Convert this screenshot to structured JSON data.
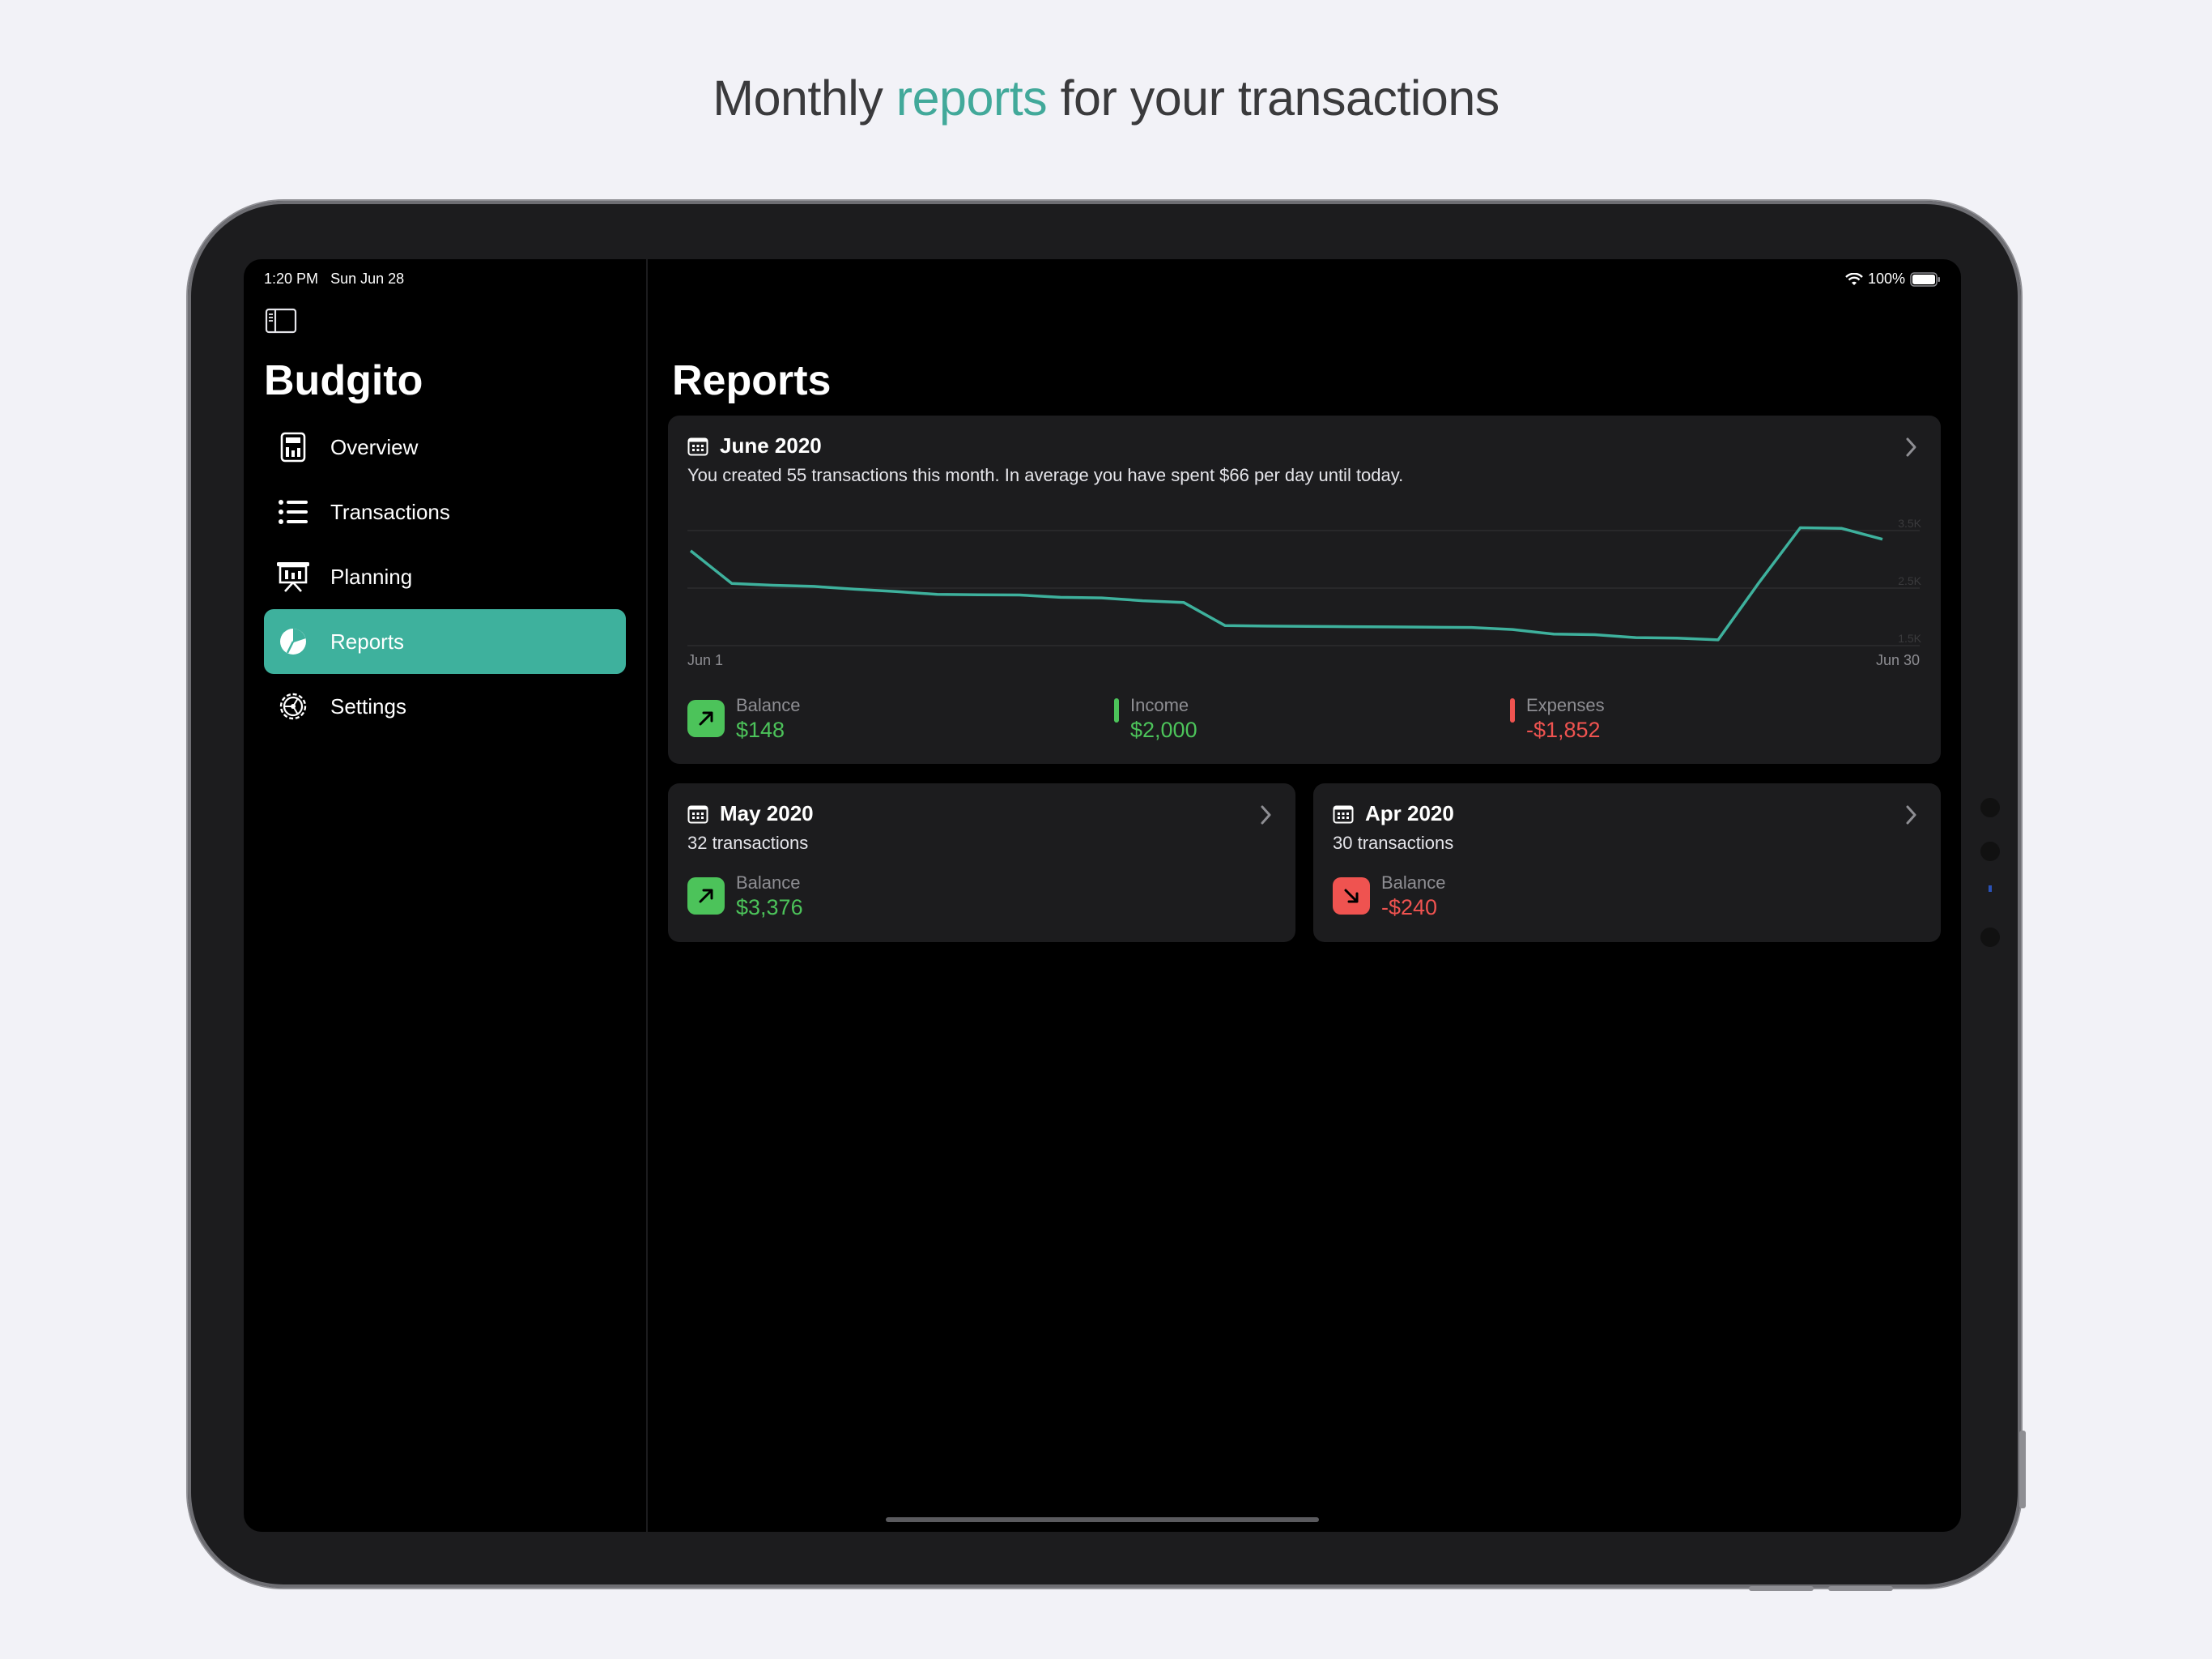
{
  "headline": {
    "before": "Monthly ",
    "accent": "reports",
    "after": " for your transactions"
  },
  "status_bar": {
    "time": "1:20 PM",
    "date": "Sun Jun 28",
    "battery": "100%"
  },
  "app_title": "Budgito",
  "sidebar": {
    "items": [
      {
        "label": "Overview",
        "icon": "overview-icon",
        "active": false
      },
      {
        "label": "Transactions",
        "icon": "list-icon",
        "active": false
      },
      {
        "label": "Planning",
        "icon": "presentation-icon",
        "active": false
      },
      {
        "label": "Reports",
        "icon": "pie-chart-icon",
        "active": true
      },
      {
        "label": "Settings",
        "icon": "gear-icon",
        "active": false
      }
    ]
  },
  "page_title": "Reports",
  "reports": {
    "current": {
      "month": "June 2020",
      "summary": "You created 55 transactions this month. In average you have spent $66 per day until today.",
      "balance_label": "Balance",
      "balance": "$148",
      "income_label": "Income",
      "income": "$2,000",
      "expenses_label": "Expenses",
      "expenses": "-$1,852"
    },
    "previous": [
      {
        "month": "May 2020",
        "transactions": "32 transactions",
        "balance_label": "Balance",
        "balance": "$3,376",
        "trend": "up"
      },
      {
        "month": "Apr 2020",
        "transactions": "30 transactions",
        "balance_label": "Balance",
        "balance": "-$240",
        "trend": "down"
      }
    ]
  },
  "colors": {
    "accent": "#3eb19d",
    "positive": "#4cc35a",
    "negative": "#ef5350",
    "card": "#1c1c1e"
  },
  "chart_data": {
    "type": "line",
    "x_start_label": "Jun 1",
    "x_end_label": "Jun 30",
    "y_tick_labels": [
      "3.5K",
      "2.5K",
      "1.5K"
    ],
    "ylim": [
      1500,
      3500
    ],
    "x": [
      1,
      2,
      3,
      4,
      5,
      6,
      7,
      8,
      9,
      10,
      11,
      12,
      13,
      14,
      15,
      16,
      17,
      18,
      19,
      20,
      21,
      22,
      23,
      24,
      25,
      26,
      27,
      28,
      29,
      30
    ],
    "values": [
      3150,
      2580,
      2550,
      2530,
      2480,
      2440,
      2390,
      2385,
      2380,
      2340,
      2330,
      2280,
      2250,
      1850,
      1840,
      1835,
      1830,
      1825,
      1820,
      1815,
      1780,
      1700,
      1690,
      1640,
      1630,
      1600,
      2600,
      3550,
      3540,
      3350
    ],
    "grid": true,
    "color": "#3eb19d"
  }
}
